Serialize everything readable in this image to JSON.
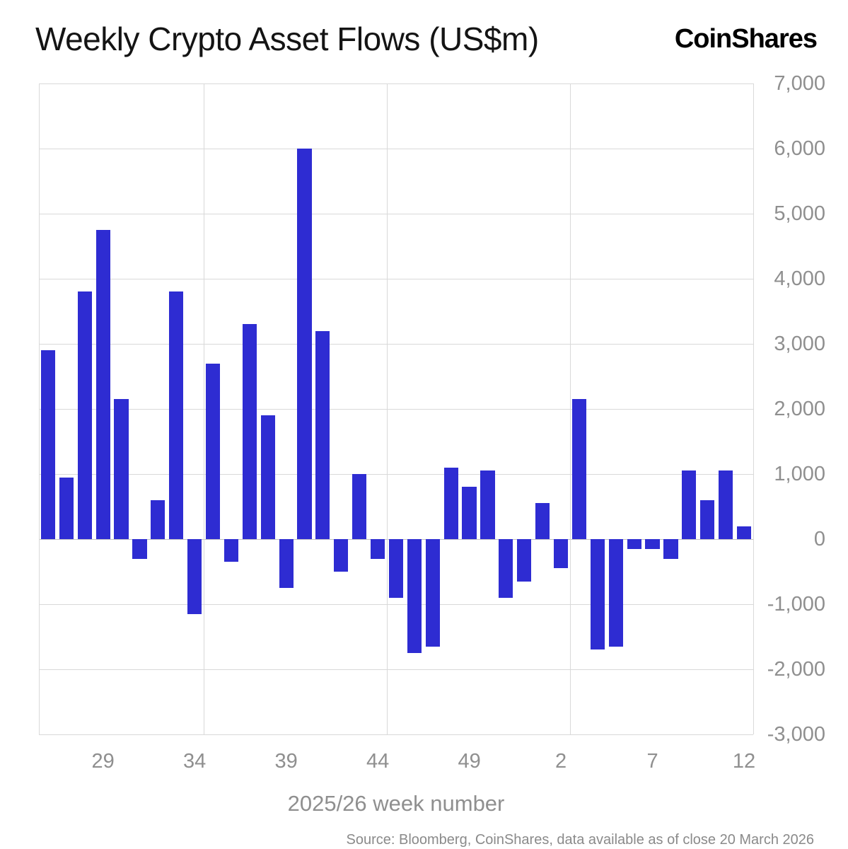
{
  "header": {
    "title": "Weekly Crypto Asset Flows (US$m)",
    "logo": "CoinShares"
  },
  "chart_data": {
    "type": "bar",
    "x": [
      26,
      27,
      28,
      29,
      30,
      31,
      32,
      33,
      34,
      35,
      36,
      37,
      38,
      39,
      40,
      41,
      42,
      43,
      44,
      45,
      46,
      47,
      48,
      49,
      50,
      51,
      52,
      1,
      2,
      3,
      4,
      5,
      6,
      7,
      8,
      9,
      10,
      11,
      12
    ],
    "values": [
      2900,
      950,
      3800,
      4750,
      2150,
      -300,
      600,
      3800,
      -1150,
      2700,
      -350,
      3300,
      1900,
      -750,
      6000,
      3200,
      -500,
      1000,
      -300,
      -900,
      -1750,
      -1650,
      1100,
      800,
      1050,
      -900,
      -650,
      550,
      -450,
      2150,
      -1700,
      -1650,
      -150,
      -150,
      -300,
      1050,
      600,
      1050,
      200
    ],
    "x_tick_labels": [
      "29",
      "34",
      "39",
      "44",
      "49",
      "2",
      "7",
      "12"
    ],
    "x_tick_indices": [
      3,
      8,
      13,
      18,
      23,
      28,
      33,
      38
    ],
    "y_ticks": [
      7000,
      6000,
      5000,
      4000,
      3000,
      2000,
      1000,
      0,
      -1000,
      -2000,
      -3000
    ],
    "y_tick_labels": [
      "7,000",
      "6,000",
      "5,000",
      "4,000",
      "3,000",
      "2,000",
      "1,000",
      "0",
      "-1,000",
      "-2,000",
      "-3,000"
    ],
    "ylim": [
      -3000,
      7000
    ],
    "xlabel": "2025/26 week number",
    "bar_color": "#2e2cd2",
    "grid": true,
    "legend_position": "none"
  },
  "footer": {
    "source": "Source: Bloomberg, CoinShares, data available as of close 20 March 2026"
  }
}
